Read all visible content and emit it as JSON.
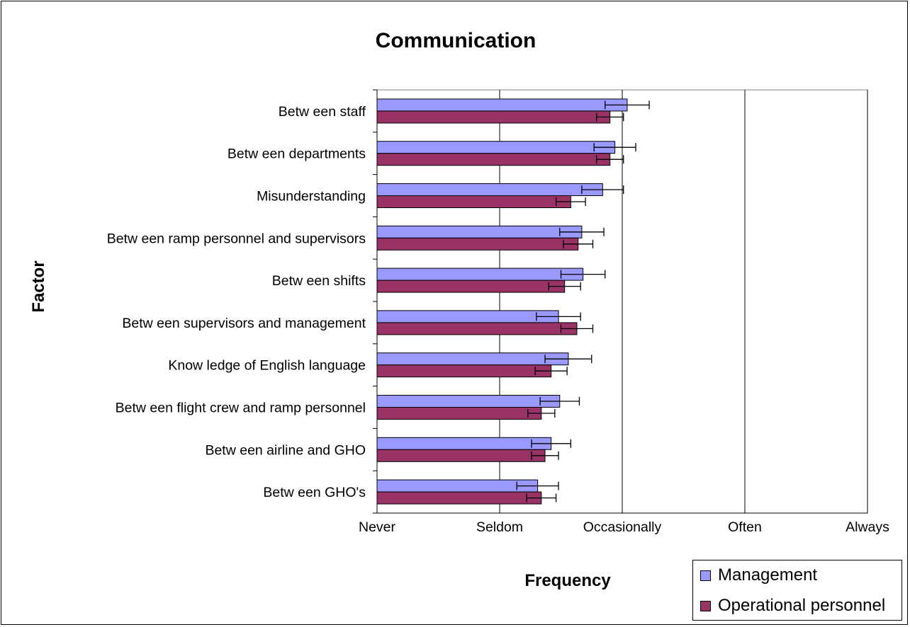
{
  "chart_data": {
    "type": "bar",
    "orientation": "horizontal",
    "title": "Communication",
    "xlabel": "Frequency",
    "ylabel": "Factor",
    "xlim": [
      1,
      5
    ],
    "x_tick_labels": [
      "Never",
      "Seldom",
      "Occasionally",
      "Often",
      "Always"
    ],
    "grid": "vertical gridlines",
    "legend_position": "bottom-right",
    "error_bars": true,
    "categories": [
      "Betw een staff",
      "Betw een departments",
      "Misunderstanding",
      "Betw een ramp personnel and supervisors",
      "Betw een shifts",
      "Betw een supervisors and management",
      "Know ledge of English language",
      "Betw een flight crew  and ramp personnel",
      "Betw een airline and GHO",
      "Betw een GHO's"
    ],
    "series": [
      {
        "name": "Management",
        "color": "#9999ff",
        "values": [
          3.04,
          2.94,
          2.84,
          2.67,
          2.68,
          2.48,
          2.56,
          2.49,
          2.42,
          2.31
        ],
        "error": [
          0.18,
          0.17,
          0.17,
          0.18,
          0.18,
          0.18,
          0.19,
          0.16,
          0.16,
          0.17
        ]
      },
      {
        "name": "Operational personnel",
        "color": "#993366",
        "values": [
          2.9,
          2.9,
          2.58,
          2.64,
          2.53,
          2.63,
          2.42,
          2.34,
          2.37,
          2.34
        ],
        "error": [
          0.11,
          0.11,
          0.12,
          0.12,
          0.13,
          0.13,
          0.13,
          0.11,
          0.11,
          0.12
        ]
      }
    ]
  }
}
